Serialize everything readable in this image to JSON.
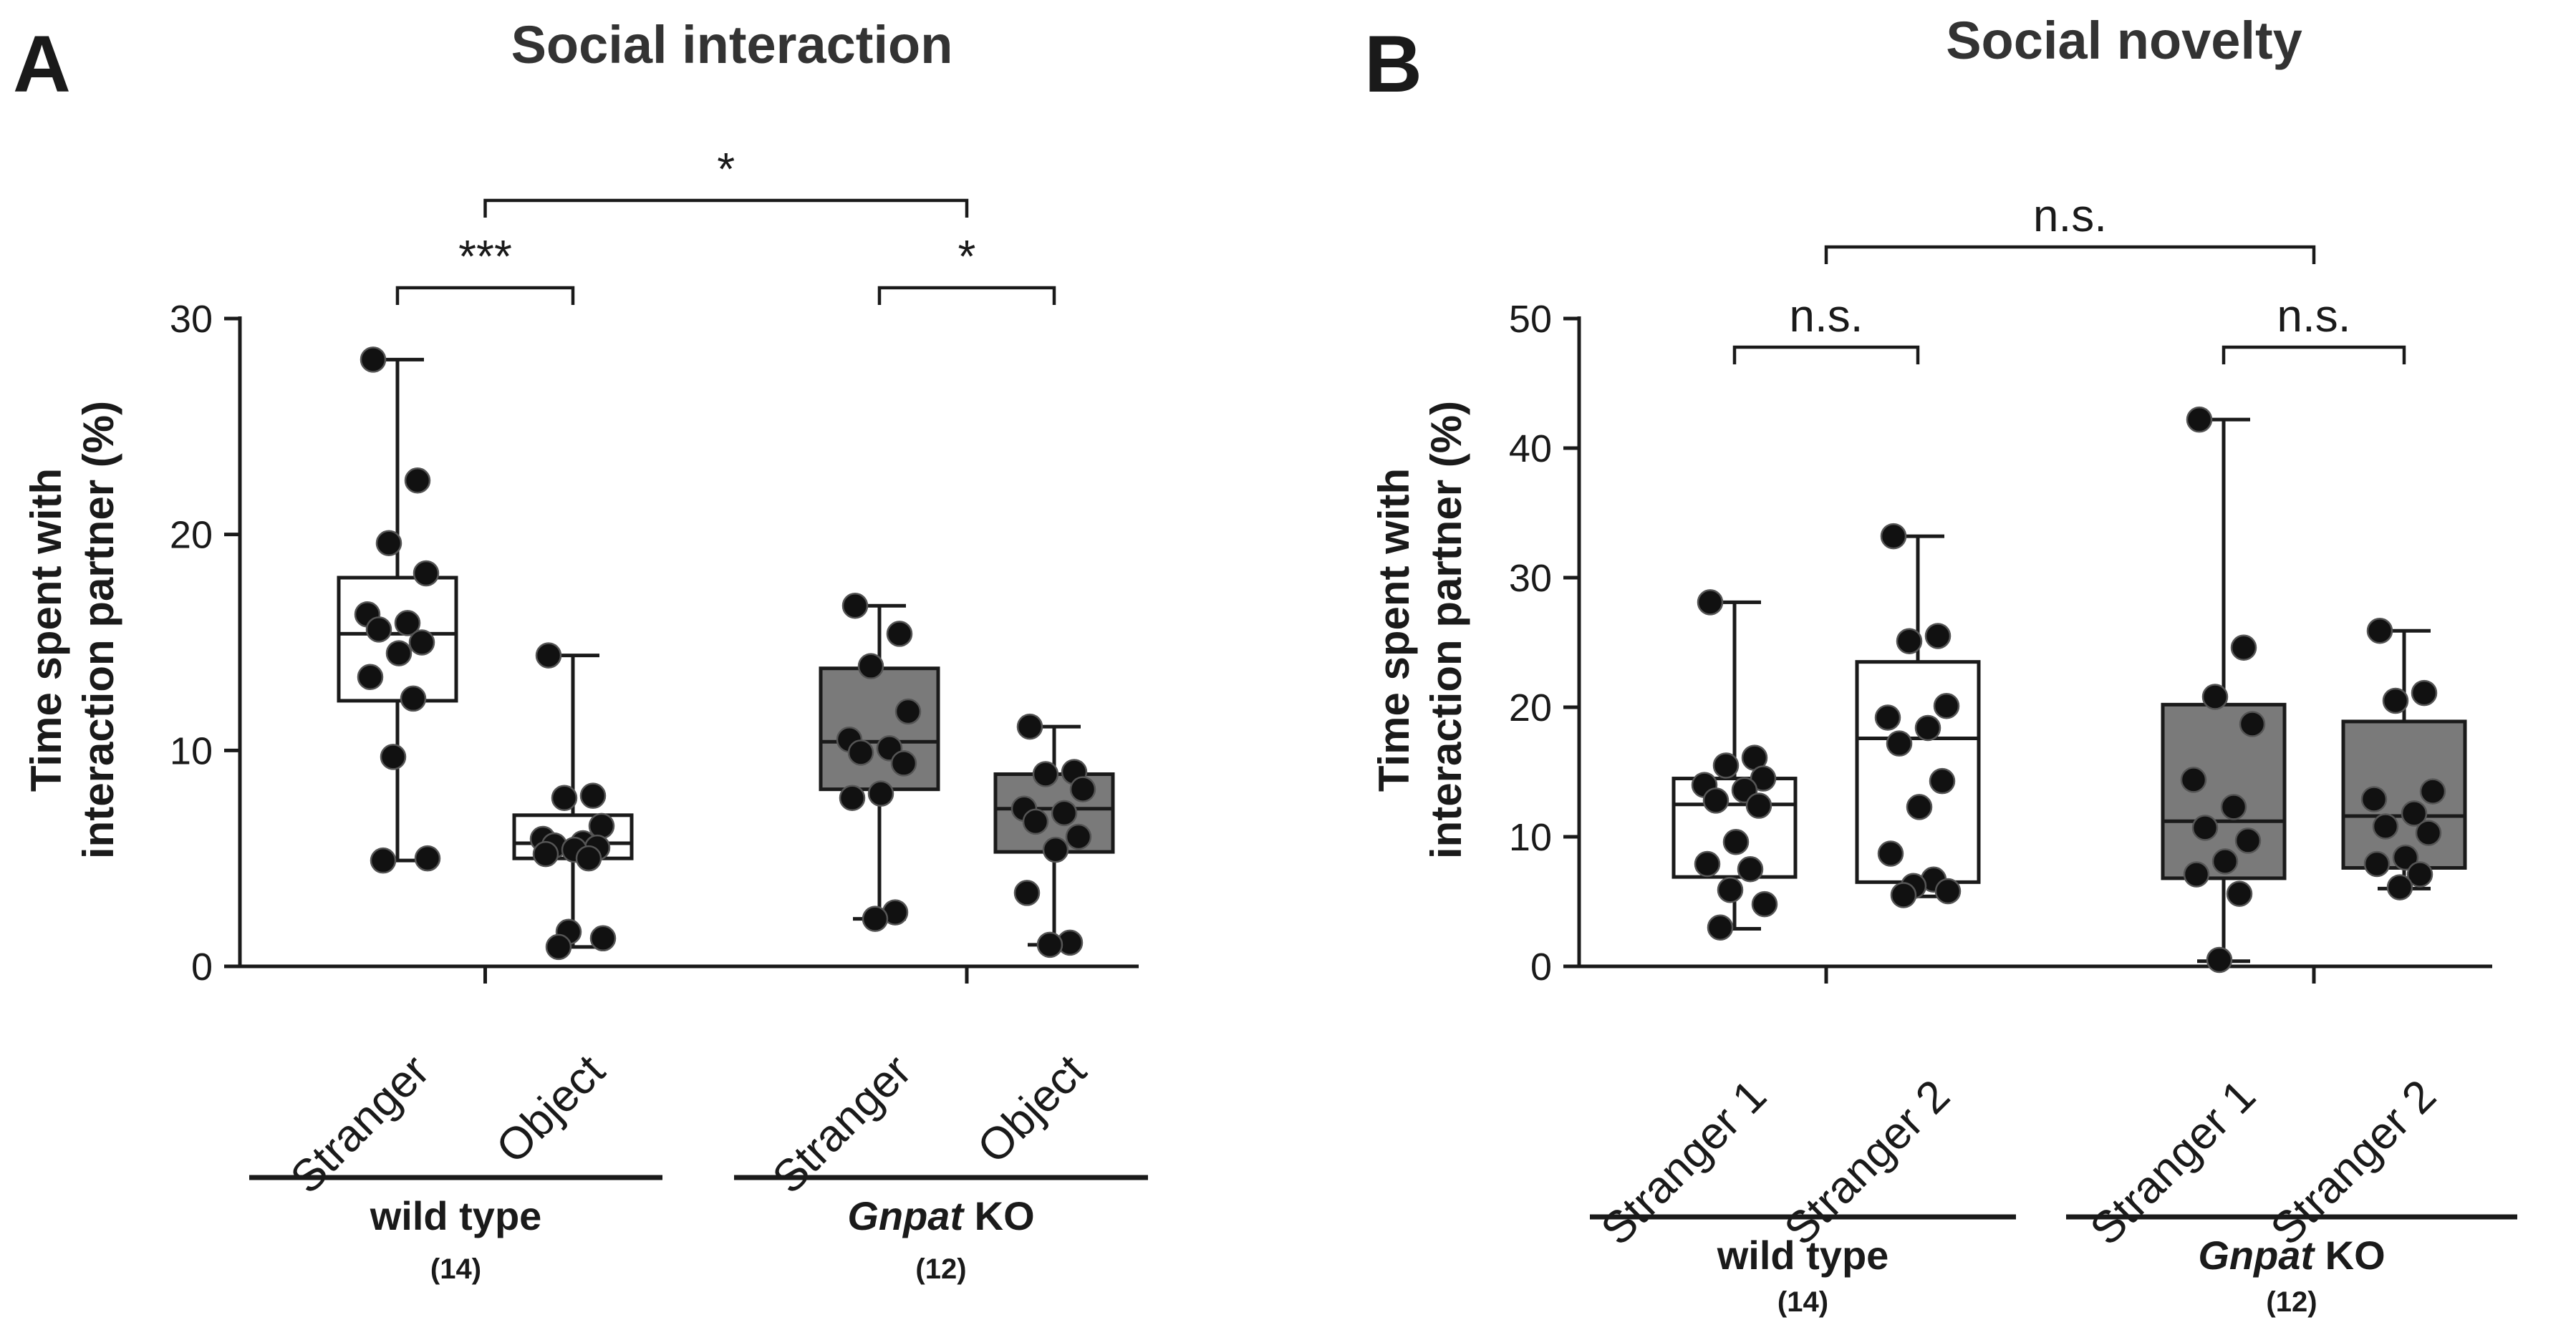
{
  "chart_data": [
    {
      "type": "box",
      "panel_letter": "A",
      "title": "Social interaction",
      "ylabel": [
        "Time spent with",
        "interaction partner (%)"
      ],
      "ylim": [
        0,
        30
      ],
      "yticks": [
        0,
        10,
        20,
        30
      ],
      "grid": false,
      "categories": [
        "Stranger",
        "Object",
        "Stranger",
        "Object"
      ],
      "groups": [
        {
          "name": "wild type",
          "italic_part": "",
          "n": "(14)",
          "members": [
            0,
            1
          ]
        },
        {
          "name": "KO",
          "italic_part": "Gnpat",
          "n": "(12)",
          "members": [
            2,
            3
          ]
        }
      ],
      "boxes": [
        {
          "category": "Stranger",
          "group": "wild type",
          "fill": "#ffffff",
          "min": 4.9,
          "q1": 12.3,
          "median": 15.4,
          "q3": 18.0,
          "max": 28.1,
          "points": [
            28.1,
            22.5,
            19.6,
            18.2,
            16.3,
            15.9,
            15.6,
            15.0,
            14.5,
            13.4,
            12.4,
            9.7,
            5.0,
            4.9
          ]
        },
        {
          "category": "Object",
          "group": "wild type",
          "fill": "#ffffff",
          "min": 0.9,
          "q1": 5.0,
          "median": 5.7,
          "q3": 7.0,
          "max": 14.4,
          "points": [
            14.4,
            7.9,
            7.8,
            6.5,
            5.9,
            5.7,
            5.6,
            5.5,
            5.4,
            5.2,
            5.0,
            1.6,
            1.3,
            0.9
          ]
        },
        {
          "category": "Stranger",
          "group": "Gnpat KO",
          "fill": "#7a7a7a",
          "min": 2.2,
          "q1": 8.2,
          "median": 10.4,
          "q3": 13.8,
          "max": 16.7,
          "points": [
            16.7,
            15.4,
            13.9,
            11.8,
            10.5,
            10.1,
            9.9,
            9.4,
            8.0,
            7.8,
            2.5,
            2.2
          ]
        },
        {
          "category": "Object",
          "group": "Gnpat KO",
          "fill": "#7a7a7a",
          "min": 1.0,
          "q1": 5.3,
          "median": 7.3,
          "q3": 8.9,
          "max": 11.1,
          "points": [
            11.1,
            9.0,
            8.9,
            8.2,
            7.3,
            7.1,
            6.7,
            6.0,
            5.4,
            3.4,
            1.1,
            1.0
          ]
        }
      ],
      "significance": [
        {
          "from": 0,
          "to": 1,
          "label": "***"
        },
        {
          "from": 2,
          "to": 3,
          "label": "*"
        },
        {
          "from": "group-0",
          "to": "group-1",
          "label": "*"
        }
      ]
    },
    {
      "type": "box",
      "panel_letter": "B",
      "title": "Social novelty",
      "ylabel": [
        "Time spent with",
        "interaction partner (%)"
      ],
      "ylim": [
        0,
        50
      ],
      "yticks": [
        0,
        10,
        20,
        30,
        40,
        50
      ],
      "grid": false,
      "categories": [
        "Stranger 1",
        "Stranger 2",
        "Stranger 1",
        "Stranger 2"
      ],
      "groups": [
        {
          "name": "wild type",
          "italic_part": "",
          "n": "(14)",
          "members": [
            0,
            1
          ]
        },
        {
          "name": "KO",
          "italic_part": "Gnpat",
          "n": "(12)",
          "members": [
            2,
            3
          ]
        }
      ],
      "boxes": [
        {
          "category": "Stranger 1",
          "group": "wild type",
          "fill": "#ffffff",
          "min": 2.9,
          "q1": 6.9,
          "median": 12.5,
          "q3": 14.5,
          "max": 28.1,
          "points": [
            28.1,
            16.1,
            15.5,
            14.5,
            14.0,
            13.6,
            12.8,
            12.4,
            9.6,
            7.9,
            7.5,
            5.9,
            4.8,
            3.0
          ]
        },
        {
          "category": "Stranger 2",
          "group": "wild type",
          "fill": "#ffffff",
          "min": 5.4,
          "q1": 6.5,
          "median": 17.6,
          "q3": 23.5,
          "max": 33.2,
          "points": [
            33.2,
            25.5,
            25.1,
            20.1,
            19.2,
            18.4,
            17.2,
            14.3,
            12.3,
            8.7,
            6.7,
            6.2,
            5.8,
            5.5
          ]
        },
        {
          "category": "Stranger 1",
          "group": "Gnpat KO",
          "fill": "#7a7a7a",
          "min": 0.4,
          "q1": 6.8,
          "median": 11.2,
          "q3": 20.2,
          "max": 42.2,
          "points": [
            42.2,
            24.6,
            20.8,
            18.7,
            14.4,
            12.3,
            10.7,
            9.7,
            8.1,
            7.1,
            5.6,
            0.5
          ]
        },
        {
          "category": "Stranger 2",
          "group": "Gnpat KO",
          "fill": "#7a7a7a",
          "min": 6.0,
          "q1": 7.6,
          "median": 11.6,
          "q3": 18.9,
          "max": 25.9,
          "points": [
            25.9,
            21.1,
            20.5,
            13.5,
            12.9,
            11.8,
            10.8,
            10.3,
            8.4,
            7.9,
            7.1,
            6.1
          ]
        }
      ],
      "significance": [
        {
          "from": 0,
          "to": 1,
          "label": "n.s."
        },
        {
          "from": 2,
          "to": 3,
          "label": "n.s."
        },
        {
          "from": "group-0",
          "to": "group-1",
          "label": "n.s."
        }
      ]
    }
  ]
}
